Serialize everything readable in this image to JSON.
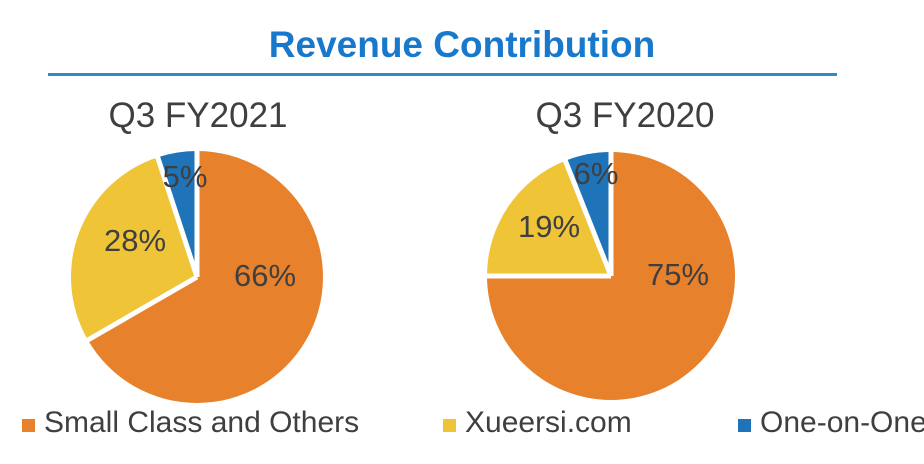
{
  "header": {
    "title": "Revenue Contribution",
    "title_color": "#1878CC",
    "divider_color": "#2E8BC5"
  },
  "chart_data": [
    {
      "type": "pie",
      "title": "Q3 FY2021",
      "categories": [
        "Small Class and Others",
        "Xueersi.com",
        "One-on-One"
      ],
      "values": [
        66,
        28,
        5
      ],
      "value_labels": [
        "66%",
        "28%",
        "5%"
      ],
      "colors": [
        "#E8812C",
        "#EFC437",
        "#1F74B9"
      ],
      "start_angle_deg": 0,
      "direction": "clockwise",
      "legend_position": "bottom"
    },
    {
      "type": "pie",
      "title": "Q3 FY2020",
      "categories": [
        "Small Class and Others",
        "Xueersi.com",
        "One-on-One"
      ],
      "values": [
        75,
        19,
        6
      ],
      "value_labels": [
        "75%",
        "19%",
        "6%"
      ],
      "colors": [
        "#E8812C",
        "#EFC437",
        "#1F74B9"
      ],
      "start_angle_deg": 0,
      "direction": "clockwise",
      "legend_position": "bottom"
    }
  ],
  "legend": {
    "items": [
      {
        "label": "Small Class and Others",
        "color": "#E8812C"
      },
      {
        "label": "Xueersi.com",
        "color": "#EFC437"
      },
      {
        "label": "One-on-One",
        "color": "#1F74B9"
      }
    ]
  },
  "text_color": "#3F3F3F"
}
